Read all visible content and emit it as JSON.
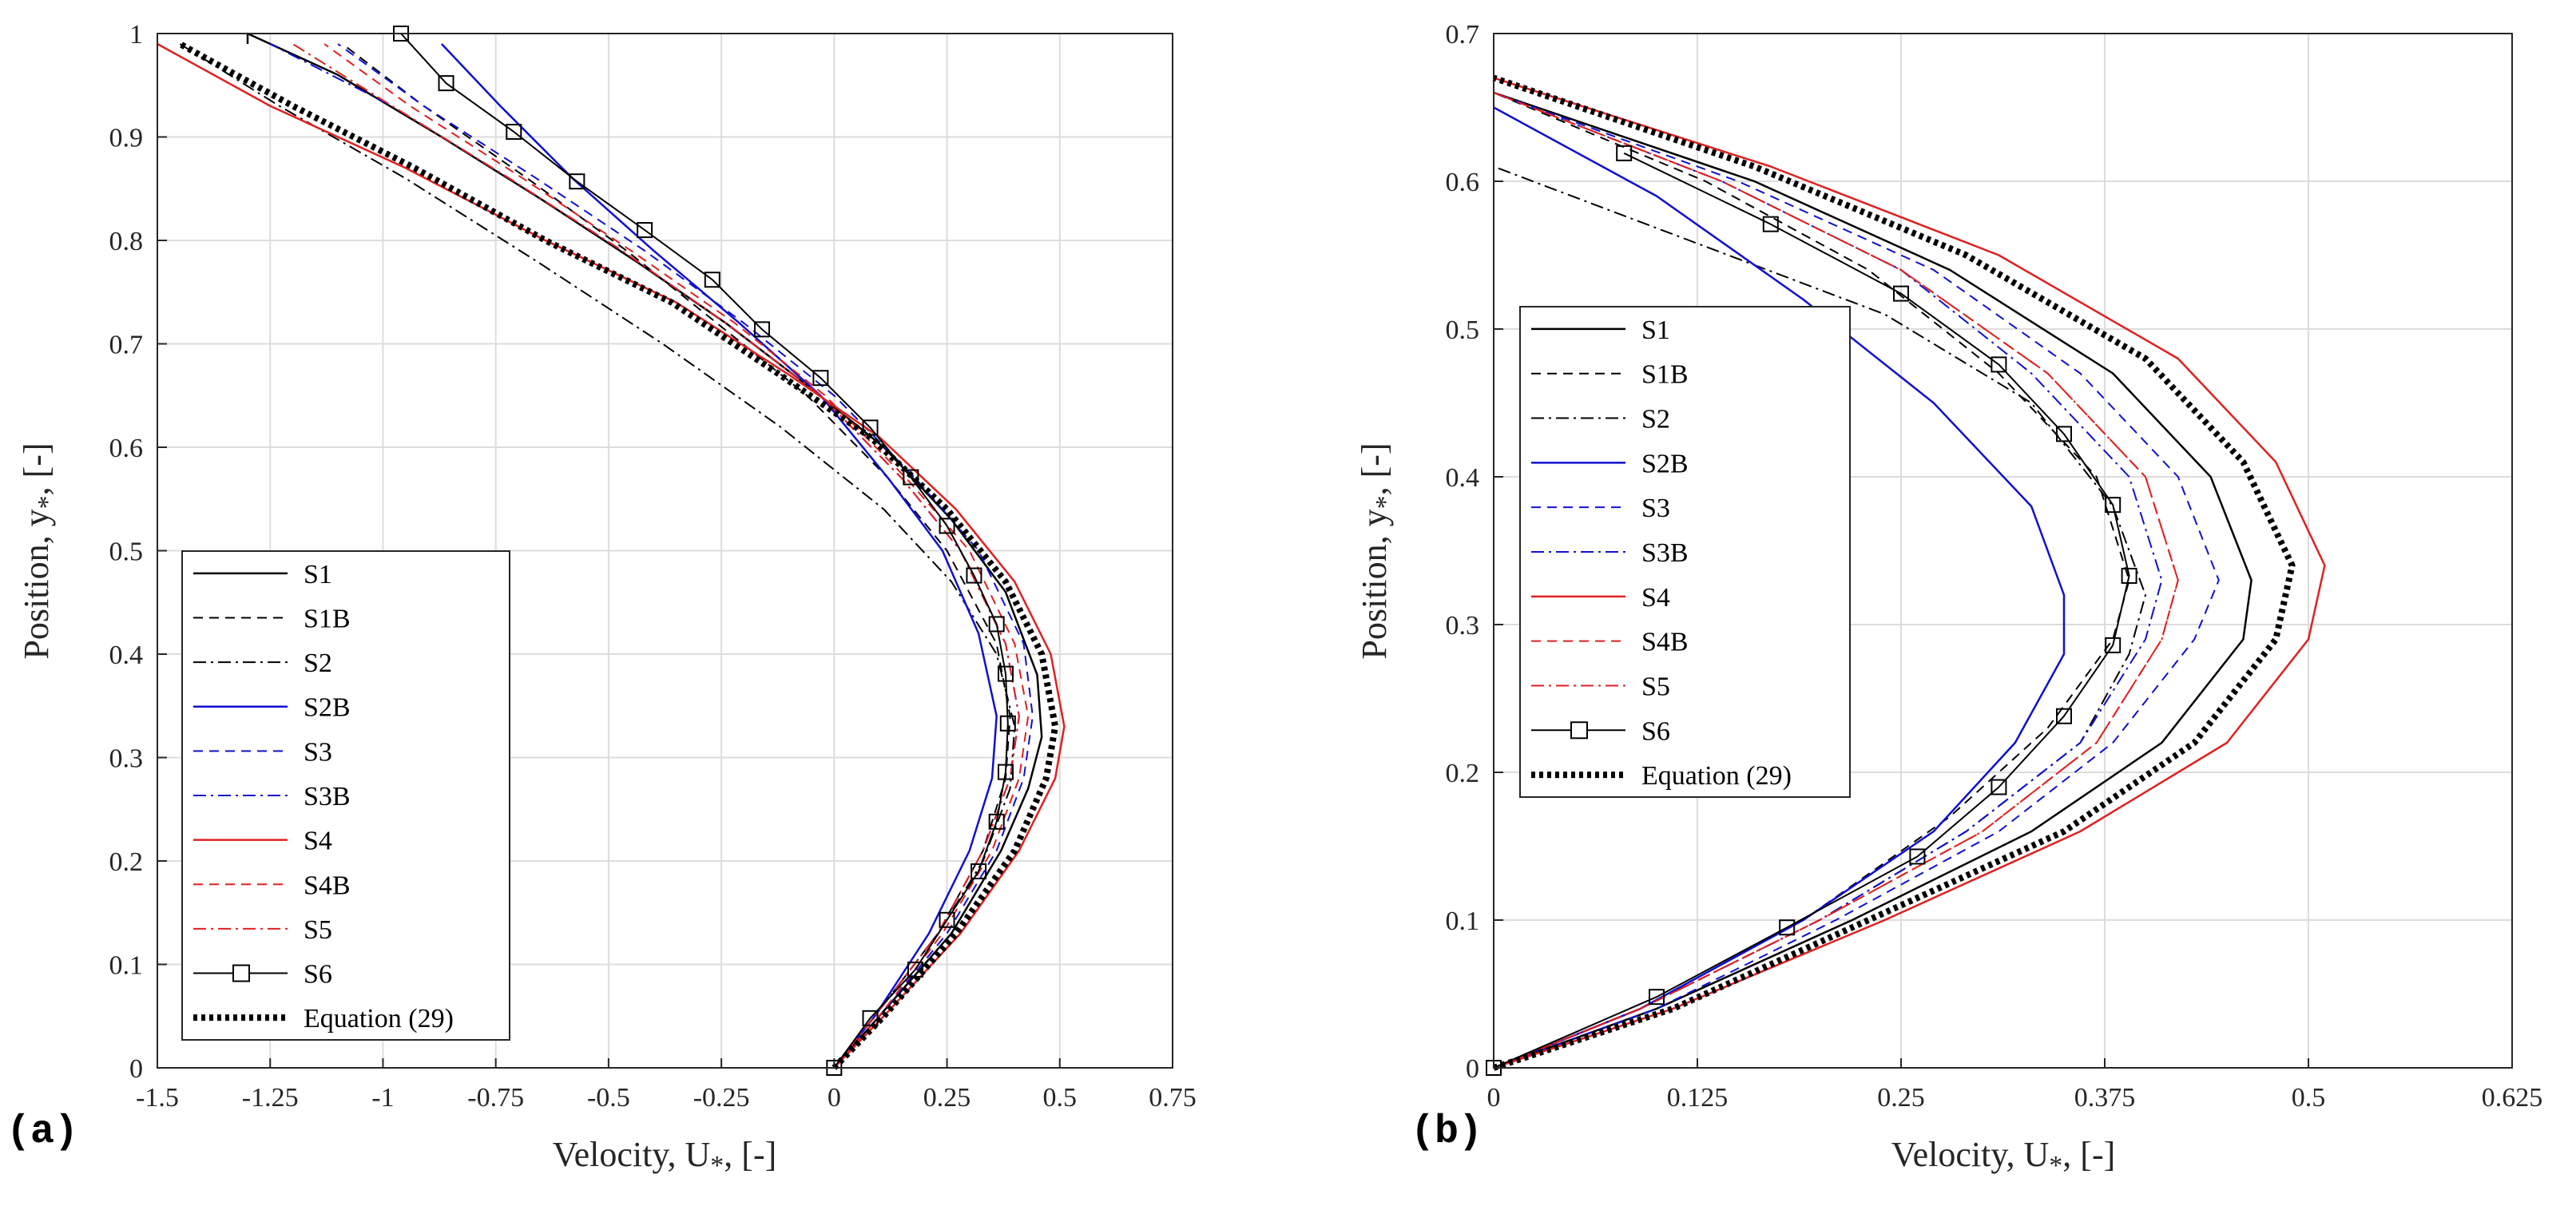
{
  "chart_data": [
    {
      "panel": "(a)",
      "type": "line",
      "xlabel": "Velocity, U",
      "xlabel_sub": "*",
      "xlabel_suffix": ", [-]",
      "ylabel": "Position, y",
      "ylabel_sub": "*",
      "ylabel_suffix": ", [-]",
      "xlim": [
        -1.5,
        0.75
      ],
      "ylim": [
        0,
        1
      ],
      "xticks": [
        -1.5,
        -1.25,
        -1,
        -0.75,
        -0.5,
        -0.25,
        0,
        0.25,
        0.5,
        0.75
      ],
      "xtick_labels": [
        "-1.5",
        "-1.25",
        "-1",
        "-0.75",
        "-0.5",
        "-0.25",
        "0",
        "0.25",
        "0.5",
        "0.75"
      ],
      "yticks": [
        0,
        0.1,
        0.2,
        0.3,
        0.4,
        0.5,
        0.6,
        0.7,
        0.8,
        0.9,
        1
      ],
      "ytick_labels": [
        "0",
        "0.1",
        "0.2",
        "0.3",
        "0.4",
        "0.5",
        "0.6",
        "0.7",
        "0.8",
        "0.9",
        "1"
      ],
      "grid": true,
      "legend_position": "bottom-left",
      "series": [
        {
          "name": "S1",
          "color": "#000000",
          "dash": "solid",
          "width": 2.5,
          "x": [
            0.0,
            0.1,
            0.26,
            0.37,
            0.43,
            0.46,
            0.45,
            0.38,
            0.26,
            0.11,
            -0.06,
            -0.24,
            -0.44,
            -0.65,
            -0.87,
            -1.1,
            -1.3,
            -1.3
          ],
          "y": [
            0,
            0.05,
            0.13,
            0.21,
            0.27,
            0.32,
            0.38,
            0.46,
            0.53,
            0.6,
            0.66,
            0.72,
            0.78,
            0.84,
            0.9,
            0.96,
            1.0,
            0.99
          ]
        },
        {
          "name": "S1B",
          "color": "#000000",
          "dash": "12,8",
          "width": 2,
          "x": [
            0.0,
            0.09,
            0.23,
            0.33,
            0.38,
            0.39,
            0.36,
            0.25,
            0.12,
            -0.06,
            -0.26,
            -0.46,
            -0.68,
            -0.91,
            -1.09
          ],
          "y": [
            0,
            0.05,
            0.13,
            0.21,
            0.28,
            0.34,
            0.41,
            0.5,
            0.57,
            0.65,
            0.72,
            0.79,
            0.86,
            0.93,
            0.99
          ]
        },
        {
          "name": "S2",
          "color": "#000000",
          "dash": "16,6,3,6",
          "width": 2,
          "x": [
            0.0,
            0.09,
            0.23,
            0.33,
            0.39,
            0.4,
            0.36,
            0.26,
            0.11,
            -0.12,
            -0.38,
            -0.66,
            -0.95,
            -1.23,
            -1.45
          ],
          "y": [
            0,
            0.05,
            0.13,
            0.2,
            0.27,
            0.33,
            0.4,
            0.47,
            0.54,
            0.62,
            0.7,
            0.78,
            0.86,
            0.93,
            0.99
          ]
        },
        {
          "name": "S2B",
          "color": "#1010d0",
          "dash": "solid",
          "width": 2.5,
          "x": [
            0.0,
            0.09,
            0.21,
            0.3,
            0.35,
            0.36,
            0.32,
            0.24,
            0.12,
            -0.03,
            -0.21,
            -0.4,
            -0.58,
            -0.74,
            -0.87
          ],
          "y": [
            0,
            0.05,
            0.13,
            0.21,
            0.28,
            0.34,
            0.42,
            0.5,
            0.57,
            0.65,
            0.72,
            0.79,
            0.86,
            0.93,
            0.99
          ]
        },
        {
          "name": "S3",
          "color": "#1010d0",
          "dash": "12,8",
          "width": 2,
          "x": [
            0.0,
            0.1,
            0.25,
            0.36,
            0.42,
            0.44,
            0.42,
            0.32,
            0.18,
            0.0,
            -0.2,
            -0.42,
            -0.66,
            -0.91,
            -1.1
          ],
          "y": [
            0,
            0.05,
            0.13,
            0.21,
            0.28,
            0.34,
            0.41,
            0.5,
            0.57,
            0.65,
            0.72,
            0.79,
            0.86,
            0.93,
            0.99
          ]
        },
        {
          "name": "S3B",
          "color": "#1010d0",
          "dash": "16,6,3,6",
          "width": 2,
          "x": [
            0.0,
            0.09,
            0.23,
            0.33,
            0.39,
            0.41,
            0.38,
            0.28,
            0.15,
            -0.03,
            -0.24,
            -0.47,
            -0.72,
            -0.98,
            -1.25
          ],
          "y": [
            0,
            0.05,
            0.13,
            0.21,
            0.28,
            0.34,
            0.41,
            0.5,
            0.57,
            0.65,
            0.72,
            0.79,
            0.86,
            0.93,
            0.99
          ]
        },
        {
          "name": "S4",
          "color": "#e02020",
          "dash": "solid",
          "width": 2.5,
          "x": [
            0.0,
            0.11,
            0.28,
            0.41,
            0.49,
            0.51,
            0.48,
            0.4,
            0.27,
            0.1,
            -0.1,
            -0.35,
            -0.64,
            -0.95,
            -1.25,
            -1.5
          ],
          "y": [
            0,
            0.05,
            0.13,
            0.21,
            0.28,
            0.33,
            0.4,
            0.47,
            0.54,
            0.61,
            0.67,
            0.74,
            0.8,
            0.87,
            0.93,
            0.99
          ]
        },
        {
          "name": "S4B",
          "color": "#e02020",
          "dash": "12,8",
          "width": 2,
          "x": [
            0.0,
            0.1,
            0.24,
            0.35,
            0.41,
            0.43,
            0.4,
            0.3,
            0.16,
            -0.02,
            -0.22,
            -0.45,
            -0.69,
            -0.94,
            -1.13
          ],
          "y": [
            0,
            0.05,
            0.13,
            0.21,
            0.28,
            0.34,
            0.41,
            0.5,
            0.57,
            0.65,
            0.72,
            0.79,
            0.86,
            0.93,
            0.99
          ]
        },
        {
          "name": "S5",
          "color": "#e02020",
          "dash": "16,6,3,6",
          "width": 2,
          "x": [
            0.0,
            0.09,
            0.23,
            0.33,
            0.39,
            0.41,
            0.38,
            0.28,
            0.15,
            -0.03,
            -0.24,
            -0.47,
            -0.72,
            -0.98,
            -1.2
          ],
          "y": [
            0,
            0.05,
            0.13,
            0.21,
            0.28,
            0.34,
            0.41,
            0.5,
            0.57,
            0.65,
            0.72,
            0.79,
            0.86,
            0.93,
            0.99
          ]
        },
        {
          "name": "S6",
          "color": "#000000",
          "dash": "solid",
          "width": 2,
          "marker": "square",
          "x": [
            0.0,
            0.08,
            0.18,
            0.25,
            0.32,
            0.36,
            0.38,
            0.385,
            0.38,
            0.36,
            0.31,
            0.25,
            0.17,
            0.08,
            -0.03,
            -0.16,
            -0.27,
            -0.42,
            -0.57,
            -0.71,
            -0.86,
            -0.96
          ],
          "y": [
            0,
            0.048,
            0.095,
            0.143,
            0.19,
            0.238,
            0.286,
            0.333,
            0.381,
            0.429,
            0.476,
            0.524,
            0.571,
            0.619,
            0.667,
            0.714,
            0.762,
            0.81,
            0.857,
            0.905,
            0.952,
            1.0
          ]
        },
        {
          "name": "Equation (29)",
          "color": "#000000",
          "dash": "5,5",
          "width": 8,
          "x": [
            0.0,
            0.11,
            0.27,
            0.4,
            0.47,
            0.49,
            0.46,
            0.38,
            0.25,
            0.08,
            -0.12,
            -0.36,
            -0.64,
            -0.93,
            -1.2,
            -1.45
          ],
          "y": [
            0,
            0.05,
            0.13,
            0.21,
            0.28,
            0.33,
            0.4,
            0.47,
            0.54,
            0.61,
            0.67,
            0.74,
            0.8,
            0.87,
            0.93,
            0.99
          ]
        }
      ]
    },
    {
      "panel": "(b)",
      "type": "line",
      "xlabel": "Velocity, U",
      "xlabel_sub": "*",
      "xlabel_suffix": ", [-]",
      "ylabel": "Position, y",
      "ylabel_sub": "*",
      "ylabel_suffix": ", [-]",
      "xlim": [
        0,
        0.625
      ],
      "ylim": [
        0,
        0.7
      ],
      "xticks": [
        0,
        0.125,
        0.25,
        0.375,
        0.5,
        0.625
      ],
      "xtick_labels": [
        "0",
        "0.125",
        "0.25",
        "0.375",
        "0.5",
        "0.625"
      ],
      "yticks": [
        0,
        0.1,
        0.2,
        0.3,
        0.4,
        0.5,
        0.6,
        0.7
      ],
      "ytick_labels": [
        "0",
        "0.1",
        "0.2",
        "0.3",
        "0.4",
        "0.5",
        "0.6",
        "0.7"
      ],
      "grid": true,
      "legend_position": "middle-left",
      "series": [
        {
          "name": "S1",
          "color": "#000000",
          "dash": "solid",
          "width": 2.5,
          "x": [
            0.0,
            0.1,
            0.22,
            0.33,
            0.41,
            0.46,
            0.465,
            0.44,
            0.38,
            0.28,
            0.16,
            0.0
          ],
          "y": [
            0,
            0.04,
            0.1,
            0.16,
            0.22,
            0.29,
            0.33,
            0.4,
            0.47,
            0.54,
            0.6,
            0.66
          ]
        },
        {
          "name": "S1B",
          "color": "#000000",
          "dash": "12,8",
          "width": 2,
          "x": [
            0.0,
            0.09,
            0.19,
            0.28,
            0.34,
            0.38,
            0.39,
            0.37,
            0.31,
            0.23,
            0.13,
            0.0
          ],
          "y": [
            0,
            0.04,
            0.1,
            0.17,
            0.23,
            0.29,
            0.33,
            0.4,
            0.47,
            0.54,
            0.6,
            0.66
          ]
        },
        {
          "name": "S2",
          "color": "#000000",
          "dash": "16,6,3,6",
          "width": 2,
          "x": [
            0.0,
            0.09,
            0.2,
            0.29,
            0.36,
            0.39,
            0.4,
            0.38,
            0.33,
            0.24,
            0.12,
            0.0
          ],
          "y": [
            0,
            0.04,
            0.1,
            0.16,
            0.22,
            0.28,
            0.32,
            0.38,
            0.45,
            0.51,
            0.56,
            0.61
          ]
        },
        {
          "name": "S2B",
          "color": "#1010d0",
          "dash": "solid",
          "width": 2.5,
          "x": [
            0.0,
            0.09,
            0.19,
            0.27,
            0.32,
            0.35,
            0.35,
            0.33,
            0.27,
            0.19,
            0.1,
            0.0
          ],
          "y": [
            0,
            0.04,
            0.1,
            0.16,
            0.22,
            0.28,
            0.32,
            0.38,
            0.45,
            0.52,
            0.59,
            0.65
          ]
        },
        {
          "name": "S3",
          "color": "#1010d0",
          "dash": "12,8",
          "width": 2,
          "x": [
            0.0,
            0.1,
            0.21,
            0.31,
            0.38,
            0.43,
            0.445,
            0.42,
            0.36,
            0.27,
            0.15,
            0.0
          ],
          "y": [
            0,
            0.04,
            0.1,
            0.16,
            0.22,
            0.29,
            0.33,
            0.4,
            0.47,
            0.54,
            0.6,
            0.66
          ]
        },
        {
          "name": "S3B",
          "color": "#1010d0",
          "dash": "16,6,3,6",
          "width": 2,
          "x": [
            0.0,
            0.09,
            0.2,
            0.29,
            0.36,
            0.4,
            0.41,
            0.39,
            0.33,
            0.25,
            0.14,
            0.0
          ],
          "y": [
            0,
            0.04,
            0.1,
            0.16,
            0.22,
            0.29,
            0.33,
            0.4,
            0.47,
            0.54,
            0.6,
            0.66
          ]
        },
        {
          "name": "S4",
          "color": "#e02020",
          "dash": "solid",
          "width": 2.5,
          "x": [
            0.0,
            0.11,
            0.24,
            0.36,
            0.45,
            0.5,
            0.51,
            0.48,
            0.42,
            0.31,
            0.17,
            0.0
          ],
          "y": [
            0,
            0.04,
            0.1,
            0.16,
            0.22,
            0.29,
            0.34,
            0.41,
            0.48,
            0.55,
            0.61,
            0.67
          ]
        },
        {
          "name": "S4B",
          "color": "#e02020",
          "dash": "12,8",
          "width": 2,
          "x": [
            0.0,
            0.09,
            0.2,
            0.3,
            0.37,
            0.41,
            0.42,
            0.4,
            0.34,
            0.25,
            0.14,
            0.0
          ],
          "y": [
            0,
            0.04,
            0.1,
            0.16,
            0.22,
            0.29,
            0.33,
            0.4,
            0.47,
            0.54,
            0.6,
            0.66
          ]
        },
        {
          "name": "S5",
          "color": "#e02020",
          "dash": "16,6,3,6",
          "width": 2,
          "x": [
            0.0,
            0.09,
            0.2,
            0.3,
            0.37,
            0.41,
            0.42,
            0.4,
            0.34,
            0.25,
            0.14,
            0.0
          ],
          "y": [
            0,
            0.04,
            0.1,
            0.16,
            0.22,
            0.29,
            0.33,
            0.4,
            0.47,
            0.54,
            0.6,
            0.66
          ]
        },
        {
          "name": "S6",
          "color": "#000000",
          "dash": "solid",
          "width": 2,
          "marker": "square",
          "x": [
            0.0,
            0.1,
            0.18,
            0.26,
            0.31,
            0.35,
            0.38,
            0.39,
            0.38,
            0.35,
            0.31,
            0.25,
            0.17,
            0.08
          ],
          "y": [
            0,
            0.048,
            0.095,
            0.143,
            0.19,
            0.238,
            0.286,
            0.333,
            0.381,
            0.429,
            0.476,
            0.524,
            0.571,
            0.619
          ]
        },
        {
          "name": "Equation (29)",
          "color": "#000000",
          "dash": "5,5",
          "width": 8,
          "x": [
            0.0,
            0.11,
            0.23,
            0.35,
            0.43,
            0.48,
            0.49,
            0.46,
            0.4,
            0.29,
            0.16,
            0.0
          ],
          "y": [
            0,
            0.04,
            0.1,
            0.16,
            0.22,
            0.29,
            0.34,
            0.41,
            0.48,
            0.55,
            0.61,
            0.67
          ]
        }
      ]
    }
  ]
}
